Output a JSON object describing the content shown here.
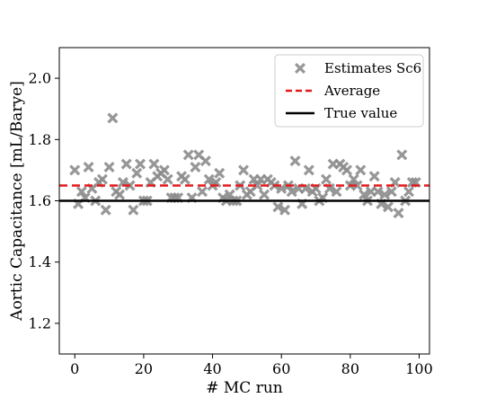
{
  "chart_data": {
    "type": "scatter",
    "xlabel": "# MC run",
    "ylabel": "Aortic Capacitance [mL/Barye]",
    "xlim": [
      -4.5,
      103
    ],
    "ylim": [
      1.1,
      2.1
    ],
    "xticks": [
      0,
      20,
      40,
      60,
      80,
      100
    ],
    "yticks": [
      1.2,
      1.4,
      1.6,
      1.8,
      2.0
    ],
    "xtick_labels": [
      "0",
      "20",
      "40",
      "60",
      "80",
      "100"
    ],
    "ytick_labels": [
      "1.2",
      "1.4",
      "1.6",
      "1.8",
      "2.0"
    ],
    "grid": false,
    "legend_position": "top-right",
    "series": [
      {
        "name": "Estimates Sc6",
        "kind": "scatter",
        "marker": "X",
        "color": "#8c8c8c",
        "x": [
          0,
          1,
          2,
          3,
          4,
          5,
          6,
          7,
          8,
          9,
          10,
          11,
          12,
          13,
          14,
          15,
          16,
          17,
          18,
          19,
          20,
          21,
          22,
          23,
          24,
          25,
          26,
          27,
          28,
          29,
          30,
          31,
          32,
          33,
          34,
          35,
          36,
          37,
          38,
          39,
          40,
          41,
          42,
          43,
          44,
          45,
          46,
          47,
          48,
          49,
          50,
          51,
          52,
          53,
          54,
          55,
          56,
          57,
          58,
          59,
          60,
          61,
          62,
          63,
          64,
          65,
          66,
          67,
          68,
          69,
          70,
          71,
          72,
          73,
          74,
          75,
          76,
          77,
          78,
          79,
          80,
          81,
          82,
          83,
          84,
          85,
          86,
          87,
          88,
          89,
          90,
          91,
          92,
          93,
          94,
          95,
          96,
          97,
          98,
          99
        ],
        "y": [
          1.7,
          1.59,
          1.63,
          1.61,
          1.71,
          1.64,
          1.6,
          1.66,
          1.67,
          1.57,
          1.71,
          1.87,
          1.63,
          1.62,
          1.66,
          1.72,
          1.65,
          1.57,
          1.69,
          1.72,
          1.6,
          1.6,
          1.66,
          1.72,
          1.68,
          1.69,
          1.7,
          1.67,
          1.61,
          1.61,
          1.61,
          1.68,
          1.67,
          1.75,
          1.61,
          1.71,
          1.75,
          1.63,
          1.73,
          1.67,
          1.65,
          1.66,
          1.69,
          1.61,
          1.6,
          1.62,
          1.6,
          1.6,
          1.65,
          1.7,
          1.62,
          1.63,
          1.67,
          1.65,
          1.67,
          1.62,
          1.67,
          1.66,
          1.65,
          1.58,
          1.64,
          1.57,
          1.65,
          1.63,
          1.73,
          1.64,
          1.59,
          1.64,
          1.7,
          1.63,
          1.64,
          1.6,
          1.61,
          1.67,
          1.64,
          1.72,
          1.63,
          1.72,
          1.71,
          1.7,
          1.65,
          1.67,
          1.65,
          1.7,
          1.62,
          1.6,
          1.63,
          1.68,
          1.63,
          1.59,
          1.62,
          1.58,
          1.63,
          1.66,
          1.56,
          1.75,
          1.6,
          1.63,
          1.66,
          1.66
        ]
      },
      {
        "name": "Average",
        "kind": "hline",
        "y": 1.65,
        "color": "#e31a1c",
        "style": "dashed"
      },
      {
        "name": "True value",
        "kind": "hline",
        "y": 1.6,
        "color": "#000000",
        "style": "solid"
      }
    ]
  }
}
